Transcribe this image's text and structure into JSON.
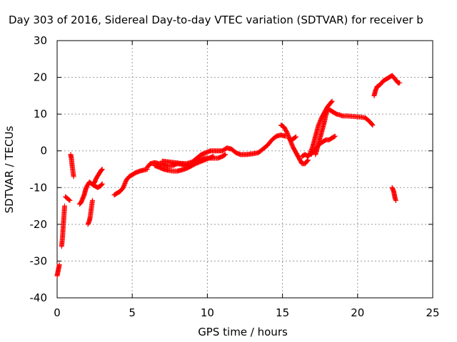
{
  "chart_data": {
    "type": "scatter",
    "title": "Day 303 of 2016, Sidereal Day-to-day VTEC variation (SDTVAR) for receiver b",
    "xlabel": "GPS time / hours",
    "ylabel": "SDTVAR / TECUs",
    "xlim": [
      0,
      25
    ],
    "ylim": [
      -40,
      30
    ],
    "xticks": [
      "0",
      "5",
      "10",
      "15",
      "20",
      "25"
    ],
    "yticks": [
      "30",
      "20",
      "10",
      "0",
      "-10",
      "-20",
      "-30",
      "-40"
    ],
    "grid": true,
    "marker": "plus",
    "color": "#ff0000",
    "series": [
      {
        "segments": [
          [
            [
              0.0,
              -34
            ],
            [
              0.05,
              -33
            ],
            [
              0.1,
              -32
            ],
            [
              0.15,
              -31
            ]
          ],
          [
            [
              0.3,
              -26
            ],
            [
              0.35,
              -24
            ],
            [
              0.4,
              -21
            ],
            [
              0.45,
              -18
            ],
            [
              0.5,
              -15
            ]
          ],
          [
            [
              0.55,
              -12.5
            ],
            [
              0.7,
              -13
            ],
            [
              0.85,
              -13.5
            ]
          ],
          [
            [
              0.9,
              -1
            ],
            [
              0.95,
              -2
            ],
            [
              1.0,
              -4
            ],
            [
              1.05,
              -5.5
            ],
            [
              1.1,
              -7
            ]
          ],
          [
            [
              1.5,
              -14.5
            ],
            [
              1.6,
              -14
            ],
            [
              1.7,
              -13
            ],
            [
              1.8,
              -12
            ],
            [
              1.9,
              -10.5
            ],
            [
              2.0,
              -9.5
            ],
            [
              2.15,
              -8.5
            ],
            [
              2.3,
              -9
            ],
            [
              2.5,
              -9.5
            ],
            [
              2.7,
              -10
            ],
            [
              2.9,
              -9.5
            ],
            [
              3.0,
              -9
            ]
          ],
          [
            [
              2.05,
              -20
            ],
            [
              2.15,
              -19
            ],
            [
              2.2,
              -18
            ],
            [
              2.25,
              -16.5
            ],
            [
              2.3,
              -15
            ],
            [
              2.35,
              -13.5
            ]
          ],
          [
            [
              2.4,
              -9
            ],
            [
              2.5,
              -8.5
            ],
            [
              2.6,
              -7.5
            ],
            [
              2.75,
              -6.5
            ],
            [
              2.9,
              -5.5
            ],
            [
              3.0,
              -5
            ]
          ],
          [
            [
              3.8,
              -12
            ],
            [
              4.0,
              -11.5
            ],
            [
              4.2,
              -11
            ],
            [
              4.4,
              -10
            ],
            [
              4.6,
              -8
            ],
            [
              4.8,
              -7
            ],
            [
              5.0,
              -6.5
            ],
            [
              5.2,
              -6
            ],
            [
              5.5,
              -5.5
            ],
            [
              5.8,
              -5.2
            ],
            [
              6.0,
              -5
            ]
          ],
          [
            [
              6.0,
              -4.5
            ],
            [
              6.2,
              -3.5
            ],
            [
              6.5,
              -3.2
            ],
            [
              6.8,
              -3.5
            ],
            [
              7.1,
              -3.8
            ],
            [
              7.4,
              -4.2
            ],
            [
              7.7,
              -4
            ],
            [
              8.0,
              -3.5
            ],
            [
              8.3,
              -3.7
            ],
            [
              8.6,
              -4
            ],
            [
              8.9,
              -3.5
            ],
            [
              9.2,
              -3
            ],
            [
              9.5,
              -2.5
            ],
            [
              9.8,
              -2
            ],
            [
              10.1,
              -2
            ],
            [
              10.4,
              -2
            ],
            [
              10.7,
              -2
            ],
            [
              11.0,
              -1.5
            ],
            [
              11.2,
              -1
            ]
          ],
          [
            [
              6.5,
              -4
            ],
            [
              6.8,
              -4.5
            ],
            [
              7.1,
              -5
            ],
            [
              7.4,
              -5.3
            ],
            [
              7.7,
              -5.5
            ],
            [
              8.0,
              -5.5
            ],
            [
              8.3,
              -5.2
            ],
            [
              8.6,
              -4.8
            ],
            [
              8.9,
              -4.2
            ],
            [
              9.2,
              -3.5
            ],
            [
              9.5,
              -3
            ],
            [
              9.8,
              -2.5
            ],
            [
              10.1,
              -2
            ],
            [
              10.4,
              -1.5
            ]
          ],
          [
            [
              7.0,
              -2.8
            ],
            [
              7.4,
              -3
            ],
            [
              7.8,
              -3.2
            ],
            [
              8.2,
              -3.4
            ],
            [
              8.6,
              -3.5
            ],
            [
              9.0,
              -3
            ],
            [
              9.3,
              -2
            ],
            [
              9.6,
              -1
            ],
            [
              9.9,
              -0.5
            ],
            [
              10.2,
              0
            ],
            [
              10.6,
              0
            ],
            [
              11.0,
              0
            ],
            [
              11.3,
              0.8
            ],
            [
              11.6,
              0.5
            ],
            [
              11.9,
              -0.5
            ],
            [
              12.2,
              -1
            ],
            [
              12.6,
              -1
            ],
            [
              13.0,
              -0.8
            ],
            [
              13.4,
              -0.5
            ],
            [
              13.7,
              0.5
            ],
            [
              14.0,
              1.5
            ],
            [
              14.3,
              3
            ],
            [
              14.6,
              4
            ],
            [
              14.9,
              4.3
            ],
            [
              15.2,
              4
            ]
          ],
          [
            [
              14.9,
              7
            ],
            [
              15.1,
              6.5
            ],
            [
              15.3,
              5
            ],
            [
              15.5,
              3
            ],
            [
              15.7,
              1
            ],
            [
              15.9,
              -0.5
            ],
            [
              16.1,
              -2
            ],
            [
              16.3,
              -3.5
            ],
            [
              16.5,
              -3.5
            ],
            [
              16.7,
              -2.5
            ]
          ],
          [
            [
              15.4,
              3.5
            ],
            [
              15.6,
              3
            ],
            [
              15.8,
              3.5
            ],
            [
              15.9,
              3.8
            ]
          ],
          [
            [
              16.3,
              -1.5
            ],
            [
              16.5,
              -1
            ],
            [
              16.7,
              -1.5
            ],
            [
              16.8,
              -1
            ],
            [
              17.0,
              1
            ],
            [
              17.2,
              4
            ],
            [
              17.4,
              7
            ],
            [
              17.6,
              9
            ],
            [
              17.8,
              10.5
            ],
            [
              18.0,
              12
            ],
            [
              18.2,
              13
            ],
            [
              18.3,
              13.5
            ]
          ],
          [
            [
              16.9,
              -1
            ],
            [
              17.1,
              0
            ],
            [
              17.3,
              1
            ],
            [
              17.5,
              2
            ],
            [
              17.7,
              2.5
            ],
            [
              17.9,
              3
            ],
            [
              18.1,
              3
            ],
            [
              18.3,
              3.5
            ],
            [
              18.5,
              4
            ]
          ],
          [
            [
              17.2,
              -1
            ],
            [
              17.4,
              2
            ],
            [
              17.6,
              5
            ],
            [
              17.8,
              8
            ],
            [
              17.9,
              10
            ],
            [
              18.0,
              11.5
            ],
            [
              18.2,
              11
            ],
            [
              18.4,
              10.5
            ],
            [
              18.6,
              10
            ],
            [
              18.8,
              9.8
            ],
            [
              19.0,
              9.5
            ],
            [
              19.3,
              9.5
            ],
            [
              19.6,
              9.4
            ],
            [
              19.9,
              9.3
            ],
            [
              20.2,
              9.2
            ],
            [
              20.5,
              9
            ],
            [
              20.8,
              8
            ],
            [
              21.0,
              7
            ]
          ],
          [
            [
              21.1,
              15
            ],
            [
              21.2,
              16.5
            ],
            [
              21.3,
              17.5
            ],
            [
              21.5,
              18
            ],
            [
              21.7,
              19
            ],
            [
              21.9,
              19.5
            ],
            [
              22.1,
              20
            ],
            [
              22.3,
              20.5
            ],
            [
              22.5,
              19.5
            ],
            [
              22.7,
              18.5
            ],
            [
              22.8,
              18.5
            ]
          ],
          [
            [
              22.3,
              -10
            ],
            [
              22.4,
              -11
            ],
            [
              22.45,
              -12
            ],
            [
              22.5,
              -13
            ],
            [
              22.55,
              -13.5
            ]
          ]
        ]
      }
    ]
  }
}
